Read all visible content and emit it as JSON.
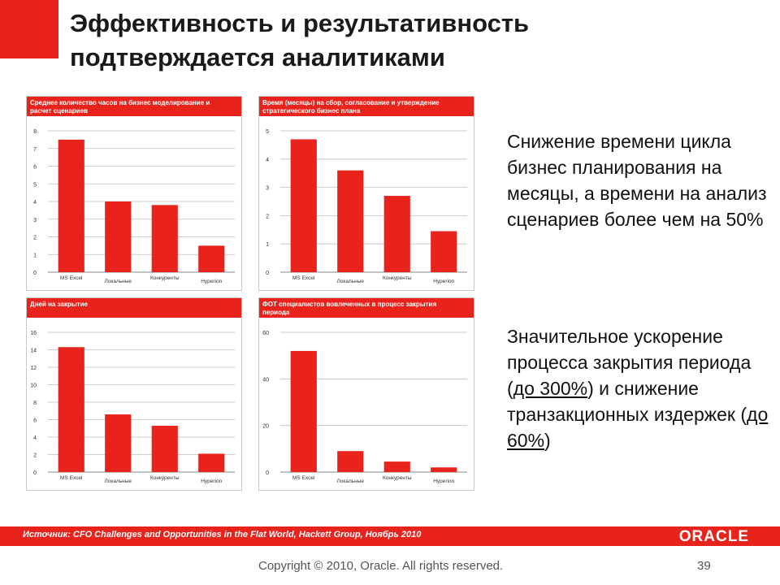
{
  "slide": {
    "title_line1": "Эффективность и результативность",
    "title_line2": "подтверждается аналитиками",
    "accent_color": "#e8231c",
    "text1": "Снижение времени цикла бизнес планирования на месяцы, а времени на анализ сценариев более чем на 50%",
    "text2_part1": "Значительное ускорение процесса закрытия периода (",
    "text2_highlight1": "до 300%",
    "text2_part2": ") и снижение транзакционных издержек (",
    "text2_highlight2": "до 60%",
    "text2_part3": ")",
    "source": "Источник: CFO Challenges and Opportunities in the Flat World, Hackett Group, Ноябрь 2010",
    "logo": "ORACLE",
    "copyright": "Copyright © 2010, Oracle.  All rights reserved.",
    "page": "39"
  },
  "chart_data": [
    {
      "type": "bar",
      "title": "Среднее количество часов на бизнес моделирование и расчет сценариев",
      "categories": [
        "MS Excel",
        "Локальные",
        "Конкуренты",
        "Hyperion"
      ],
      "values": [
        7.5,
        4.0,
        3.8,
        1.5
      ],
      "ylim": [
        0,
        8
      ],
      "yticks": [
        0,
        1,
        2,
        3,
        4,
        5,
        6,
        7,
        8
      ],
      "grid": true,
      "bar_color": "#e8231c"
    },
    {
      "type": "bar",
      "title": "Время (месяцы) на сбор, согласование и утверждение стратегического бизнес плана",
      "categories": [
        "MS Excel",
        "Локальные",
        "Конкуренты",
        "Hyperion"
      ],
      "values": [
        4.7,
        3.6,
        2.7,
        1.45
      ],
      "ylim": [
        0,
        5
      ],
      "yticks": [
        0,
        1,
        2,
        3,
        4,
        5
      ],
      "grid": true,
      "bar_color": "#e8231c"
    },
    {
      "type": "bar",
      "title": "Дней на закрытие",
      "categories": [
        "MS Excel",
        "Локальные",
        "Конкуренты",
        "Hyperion"
      ],
      "values": [
        14.3,
        6.6,
        5.3,
        2.1
      ],
      "ylim": [
        0,
        16
      ],
      "yticks": [
        0,
        2,
        4,
        6,
        8,
        10,
        12,
        14,
        16
      ],
      "grid": true,
      "bar_color": "#e8231c"
    },
    {
      "type": "bar",
      "title": "ФОТ специалистов вовлеченных в процесс закрытия периода",
      "categories": [
        "MS Excel",
        "Локальные",
        "Конкуренты",
        "Hyperion"
      ],
      "values": [
        52,
        9,
        4.5,
        2
      ],
      "ylim": [
        0,
        60
      ],
      "yticks": [
        0,
        20,
        40,
        60
      ],
      "grid": true,
      "bar_color": "#e8231c"
    }
  ]
}
